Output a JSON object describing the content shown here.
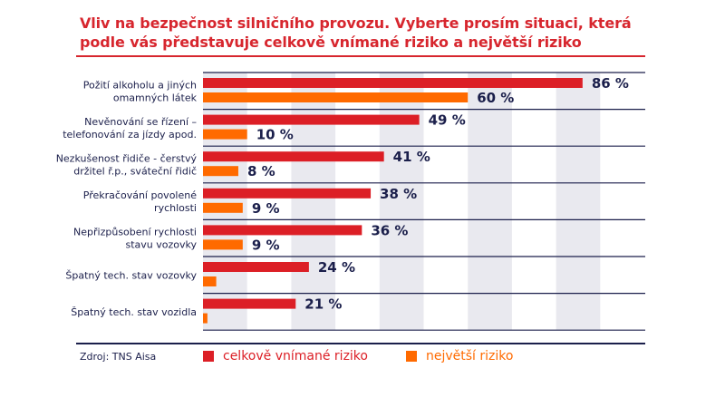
{
  "chart_data": {
    "type": "bar",
    "orientation": "horizontal",
    "title_lines": [
      "Vliv na bezpečnost silničního provozu. Vyberte prosím situaci, která",
      "podle vás představuje celkově vnímané riziko a největší riziko"
    ],
    "categories": [
      [
        "Požití alkoholu a jiných",
        "omamných látek"
      ],
      [
        "Nevěnování se řízení –",
        "telefonování za jízdy apod."
      ],
      [
        "Nezkušenost řidiče - čerstvý",
        "držitel ř.p., sváteční řidič"
      ],
      [
        "Překračování povolené",
        "rychlosti"
      ],
      [
        "Nepřizpůsobení rychlosti",
        "stavu vozovky"
      ],
      [
        "Špatný tech. stav vozovky"
      ],
      [
        "Špatný tech. stav vozidla"
      ]
    ],
    "series": [
      {
        "name": "celkově vnímané riziko",
        "color": "#dc1f26",
        "values": [
          86,
          49,
          41,
          38,
          36,
          24,
          21
        ],
        "labels": [
          "86 %",
          "49 %",
          "41 %",
          "38 %",
          "36 %",
          "24 %",
          "21 %"
        ]
      },
      {
        "name": "největší riziko",
        "color": "#ff6a00",
        "values": [
          60,
          10,
          8,
          9,
          9,
          3,
          1
        ],
        "labels": [
          "60 %",
          "10 %",
          "8 %",
          "9 %",
          "9 %",
          null,
          null
        ]
      }
    ],
    "xlim": [
      0,
      100
    ],
    "grid": "alternating vertical bands every 10 %",
    "legend": "bottom"
  },
  "source": "Zdroj: TNS Aisa",
  "colors": {
    "title": "#d7262e",
    "text": "#1b1f4b",
    "band": "#e9e9ef"
  }
}
